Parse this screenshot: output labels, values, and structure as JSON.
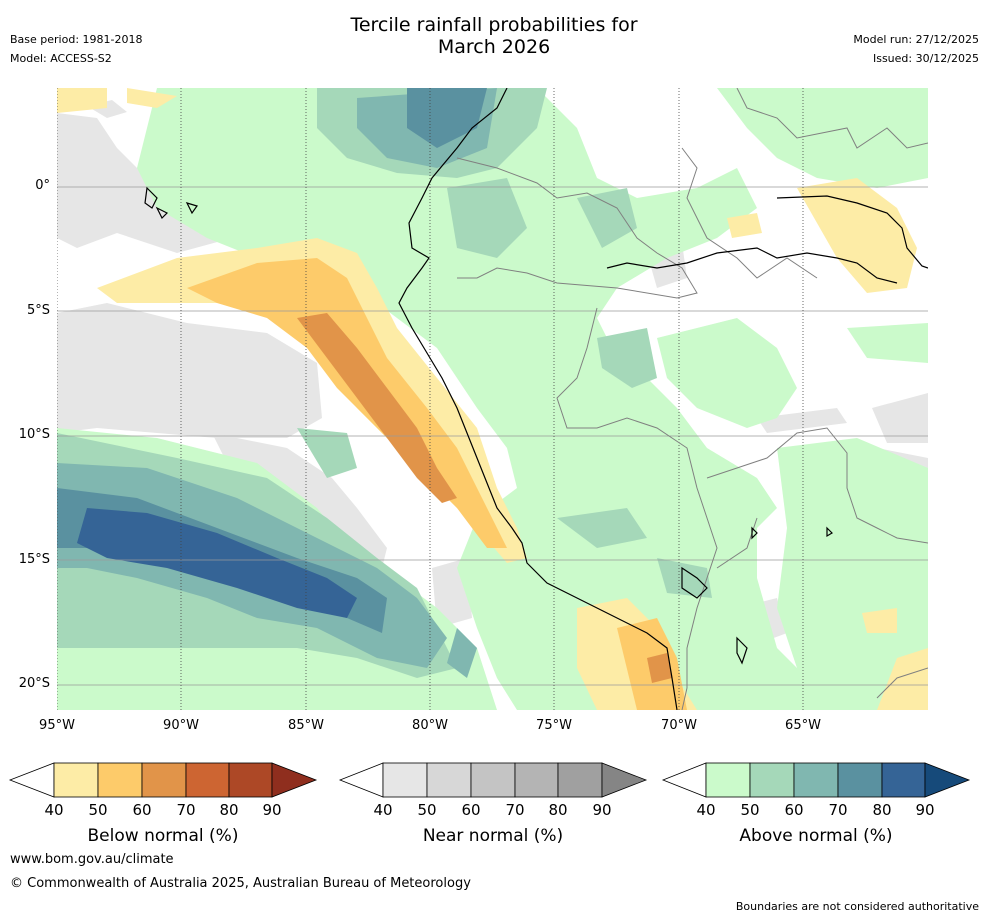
{
  "header": {
    "title_line1": "Tercile rainfall probabilities for",
    "title_line2": "March 2026",
    "base_period": "Base period: 1981-2018",
    "model": "Model: ACCESS-S2",
    "model_run": "Model run: 27/12/2025",
    "issued": "Issued: 30/12/2025"
  },
  "map": {
    "x_ticks": [
      "95°W",
      "90°W",
      "85°W",
      "80°W",
      "75°W",
      "70°W",
      "65°W"
    ],
    "y_ticks": [
      "0°",
      "5°S",
      "10°S",
      "15°S",
      "20°S"
    ]
  },
  "colorbars": [
    {
      "label": "Below normal (%)",
      "ticks": [
        "40",
        "50",
        "60",
        "70",
        "80",
        "90"
      ],
      "colors": [
        "#fdeca6",
        "#fdcb6a",
        "#e19449",
        "#cd6532",
        "#ad4826",
        "#8f2e1e"
      ]
    },
    {
      "label": "Near normal (%)",
      "ticks": [
        "40",
        "50",
        "60",
        "70",
        "80",
        "90"
      ],
      "colors": [
        "#e6e6e6",
        "#d7d7d7",
        "#c4c4c4",
        "#b4b4b4",
        "#a0a0a0",
        "#858585"
      ]
    },
    {
      "label": "Above normal (%)",
      "ticks": [
        "40",
        "50",
        "60",
        "70",
        "80",
        "90"
      ],
      "colors": [
        "#cbfacb",
        "#a5d8b9",
        "#80b7b0",
        "#5a91a0",
        "#356496",
        "#164a7a"
      ]
    }
  ],
  "footer": {
    "url": "www.bom.gov.au/climate",
    "copyright": "© Commonwealth of Australia 2025, Australian Bureau of Meteorology",
    "disclaimer": "Boundaries are not considered authoritative"
  },
  "colors": {
    "gridline": "#9a9a9a",
    "coastline": "#000000",
    "border": "#808080"
  }
}
